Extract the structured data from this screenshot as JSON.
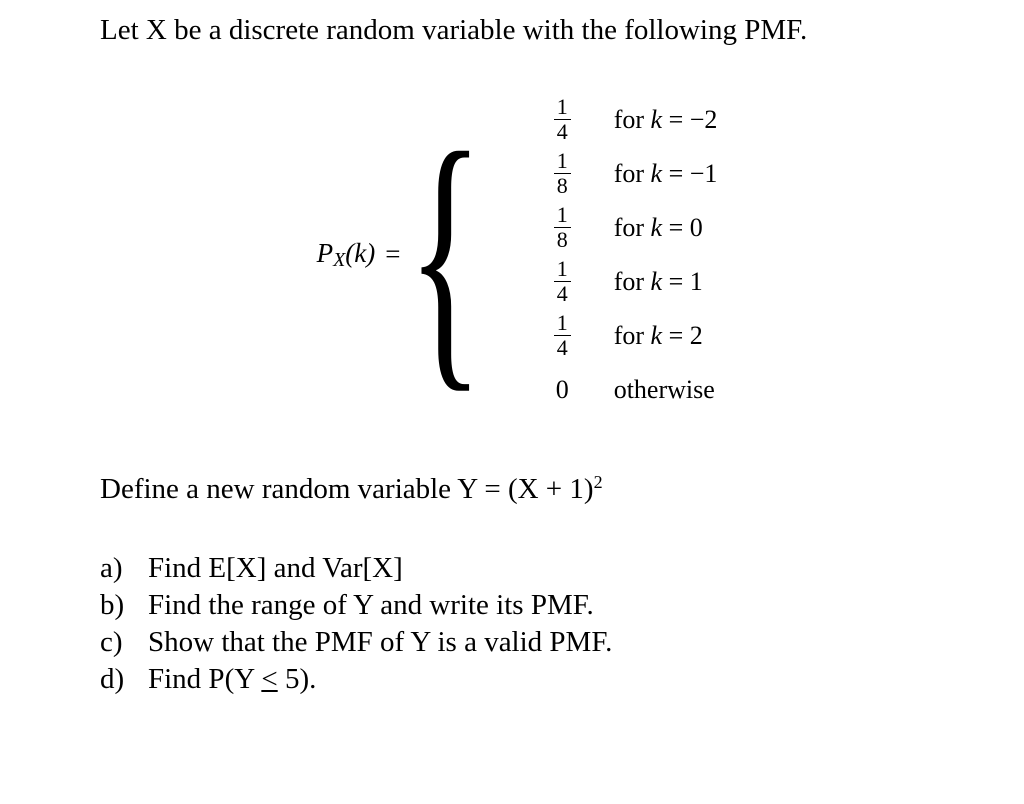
{
  "intro": "Let X be a discrete random variable with the following PMF.",
  "pmf": {
    "lhs_P": "P",
    "lhs_sub": "X",
    "lhs_arg": "(k)",
    "eq": "=",
    "cases": [
      {
        "num": "1",
        "den": "4",
        "cond_prefix": "for ",
        "cond_var": "k",
        "cond_rest": " = −2"
      },
      {
        "num": "1",
        "den": "8",
        "cond_prefix": "for ",
        "cond_var": "k",
        "cond_rest": " = −1"
      },
      {
        "num": "1",
        "den": "8",
        "cond_prefix": "for ",
        "cond_var": "k",
        "cond_rest": " = 0"
      },
      {
        "num": "1",
        "den": "4",
        "cond_prefix": "for ",
        "cond_var": "k",
        "cond_rest": " = 1"
      },
      {
        "num": "1",
        "den": "4",
        "cond_prefix": "for ",
        "cond_var": "k",
        "cond_rest": " = 2"
      }
    ],
    "otherwise_val": "0",
    "otherwise_label": "otherwise"
  },
  "define_pre": "Define a new random variable Y = (X + 1)",
  "define_exp": "2",
  "parts": {
    "a": {
      "label": "a)",
      "text": "Find E[X] and Var[X]"
    },
    "b": {
      "label": "b)",
      "text": "Find the range of Y and write its PMF."
    },
    "c": {
      "label": "c)",
      "text": "Show that the PMF of Y is a valid PMF."
    },
    "d": {
      "label": "d)",
      "pre": "Find P(Y ",
      "leq": "<",
      "post": " 5)."
    }
  }
}
